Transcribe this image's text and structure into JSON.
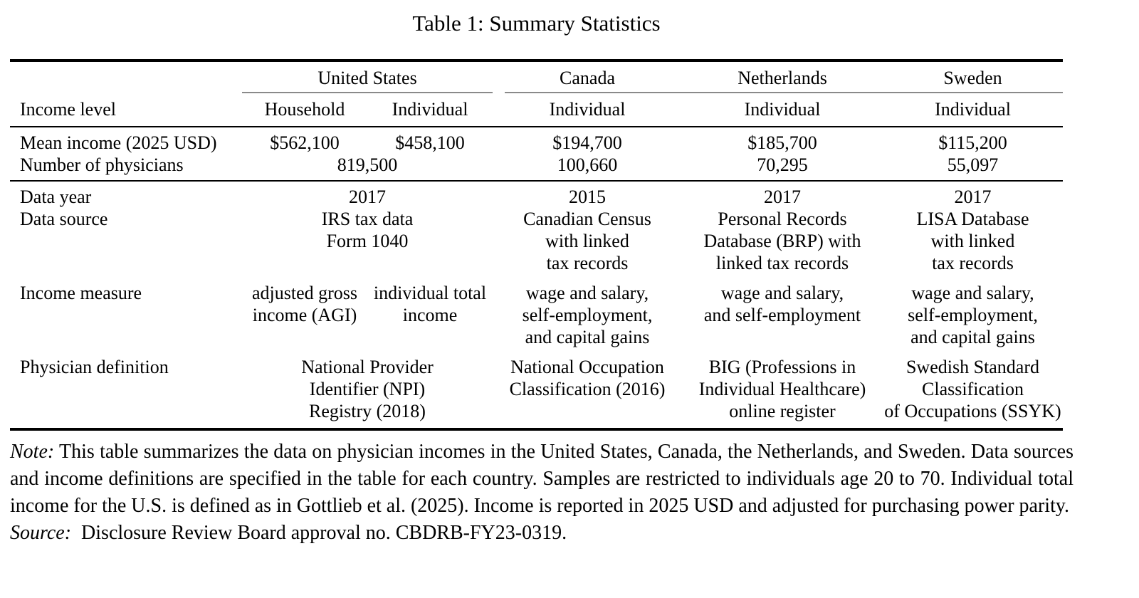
{
  "title": "Table 1: Summary Statistics",
  "header": {
    "country_row": {
      "united_states": "United States",
      "canada": "Canada",
      "netherlands": "Netherlands",
      "sweden": "Sweden"
    },
    "income_level_row": {
      "label": "Income level",
      "us_household": "Household",
      "us_individual": "Individual",
      "canada": "Individual",
      "netherlands": "Individual",
      "sweden": "Individual"
    }
  },
  "rows": {
    "mean_income": {
      "label": "Mean income (2025 USD)",
      "us_household": "$562,100",
      "us_individual": "$458,100",
      "canada": "$194,700",
      "netherlands": "$185,700",
      "sweden": "$115,200"
    },
    "num_physicians": {
      "label": "Number of physicians",
      "us": "819,500",
      "canada": "100,660",
      "netherlands": "70,295",
      "sweden": "55,097"
    },
    "data_year": {
      "label": "Data year",
      "us": "2017",
      "canada": "2015",
      "netherlands": "2017",
      "sweden": "2017"
    },
    "data_source": {
      "label": "Data source",
      "us": "IRS tax data\nForm 1040",
      "canada": "Canadian Census\nwith linked\ntax records",
      "netherlands": "Personal Records\nDatabase (BRP) with\nlinked tax records",
      "sweden": "LISA Database\nwith linked\ntax records"
    },
    "income_measure": {
      "label": "Income measure",
      "us_household": "adjusted gross\nincome (AGI)",
      "us_individual": "individual total\nincome",
      "canada": "wage and salary,\nself-employment,\nand capital gains",
      "netherlands": "wage and salary,\nand self-employment",
      "sweden": "wage and salary,\nself-employment,\nand capital gains"
    },
    "physician_definition": {
      "label": "Physician definition",
      "us": "National Provider\nIdentifier (NPI)\nRegistry (2018)",
      "canada": "National Occupation\nClassification (2016)",
      "netherlands": "BIG (Professions in\nIndividual Healthcare)\nonline register",
      "sweden": "Swedish Standard\nClassification\nof Occupations (SSYK)"
    }
  },
  "note": {
    "note_label": "Note:",
    "note_text": "This table summarizes the data on physician incomes in the United States, Canada, the Netherlands, and Sweden. Data sources and income definitions are specified in the table for each country. Samples are restricted to individuals age 20 to 70. Individual total income for the U.S. is defined as in Gottlieb et al. (2025). Income is reported in 2025 USD and adjusted for purchasing power parity.",
    "source_label": "Source:",
    "source_text": "Disclosure Review Board approval no. CBDRB-FY23-0319."
  },
  "colors": {
    "background": "#ffffff",
    "text": "#000000",
    "main_rule": "#000000",
    "cmidrule": "#8a8a8a"
  }
}
